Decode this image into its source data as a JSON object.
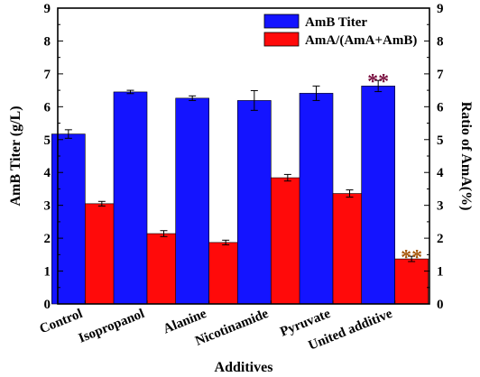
{
  "chart_data": {
    "type": "bar",
    "title": "",
    "xlabel": "Additives",
    "ylabel_left": "AmB Titer (g/L)",
    "ylabel_right": "Ratio of AmA(%)",
    "ylim_left": [
      0,
      9
    ],
    "ylim_right": [
      0,
      9
    ],
    "yticks_left": [
      "0",
      "1",
      "2",
      "3",
      "4",
      "5",
      "6",
      "7",
      "8",
      "9"
    ],
    "yticks_right": [
      "0",
      "1",
      "2",
      "3",
      "4",
      "5",
      "6",
      "7",
      "8",
      "9"
    ],
    "categories": [
      "Control",
      "Isopropanol",
      "Alanine",
      "Nicotinamide",
      "Pyruvate",
      "United additive"
    ],
    "legend_position": "top-right",
    "grid": false,
    "series": [
      {
        "name": "AmB Titer",
        "axis": "left",
        "color": "#1414ff",
        "values": [
          5.17,
          6.45,
          6.26,
          6.19,
          6.41,
          6.63
        ],
        "errors": [
          0.13,
          0.05,
          0.07,
          0.3,
          0.22,
          0.17
        ]
      },
      {
        "name": "AmA/(AmA+AmB)",
        "axis": "right",
        "color": "#ff0a0a",
        "values": [
          3.05,
          2.14,
          1.87,
          3.84,
          3.36,
          1.37
        ],
        "errors": [
          0.07,
          0.09,
          0.07,
          0.1,
          0.11,
          0.08
        ]
      }
    ],
    "annotations": [
      {
        "text": "**",
        "category": "United additive",
        "series": "AmB Titer",
        "color": "#7a1040"
      },
      {
        "text": "**",
        "category": "United additive",
        "series": "AmA/(AmA+AmB)",
        "color": "#a85a0e"
      }
    ]
  }
}
